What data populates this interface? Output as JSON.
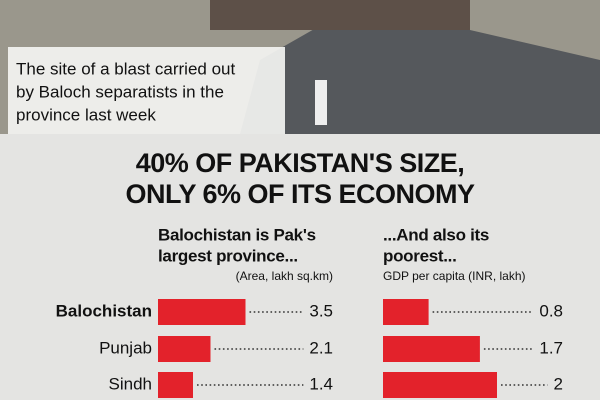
{
  "photo_caption": [
    "The site of a blast carried out",
    "by Baloch separatists in the",
    "province last week"
  ],
  "headline": [
    "40% OF PAKISTAN'S SIZE,",
    "ONLY 6% OF ITS ECONOMY"
  ],
  "chart_data": [
    {
      "type": "bar",
      "title": [
        "Balochistan is Pak's",
        "largest province..."
      ],
      "subtitle": "(Area, lakh sq.km)",
      "categories": [
        "Balochistan",
        "Punjab",
        "Sindh"
      ],
      "values": [
        3.5,
        2.1,
        1.4
      ],
      "color": "#e3222b"
    },
    {
      "type": "bar",
      "title": [
        "...And also its",
        "poorest..."
      ],
      "subtitle": "GDP per capita (INR, lakh)",
      "values": [
        0.8,
        1.7,
        2
      ],
      "color": "#e3222b"
    }
  ]
}
